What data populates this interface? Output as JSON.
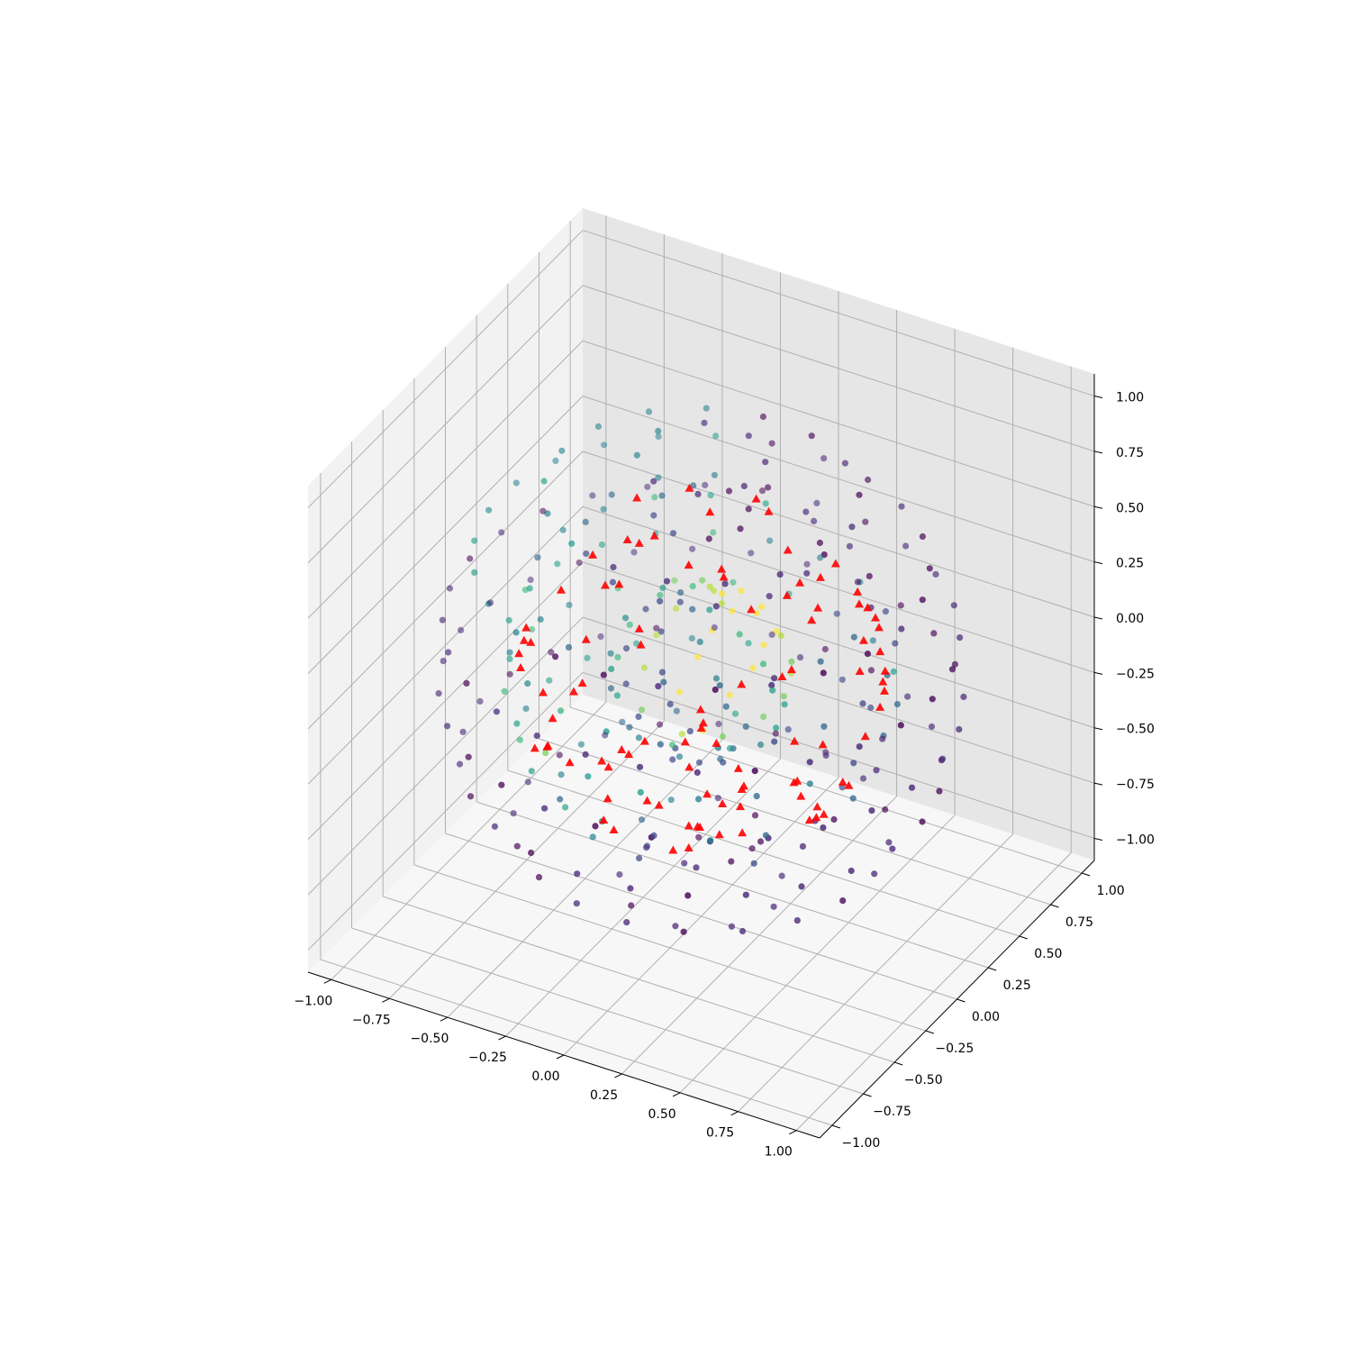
{
  "chart_data": {
    "type": "scatter",
    "projection": "3d",
    "title": "",
    "xlabel": "",
    "ylabel": "",
    "zlabel": "",
    "xlim": [
      -1.1,
      1.1
    ],
    "ylim": [
      -1.1,
      1.1
    ],
    "zlim": [
      -1.1,
      1.1
    ],
    "grid": true,
    "legend": "none",
    "x_ticks": [
      "−1.00",
      "−0.75",
      "−0.50",
      "−0.25",
      "0.00",
      "0.25",
      "0.50",
      "0.75",
      "1.00"
    ],
    "y_ticks": [
      "−1.00",
      "−0.75",
      "−0.50",
      "−0.25",
      "0.00",
      "0.25",
      "0.50",
      "0.75",
      "1.00"
    ],
    "z_ticks": [
      "−1.00",
      "−0.75",
      "−0.50",
      "−0.25",
      "0.00",
      "0.25",
      "0.50",
      "0.75",
      "1.00"
    ],
    "tick_values": [
      -1.0,
      -0.75,
      -0.5,
      -0.25,
      0.0,
      0.25,
      0.5,
      0.75,
      1.0
    ],
    "series": [
      {
        "marker": "circle",
        "colormap": "viridis",
        "description_of_shape": "points on concentric spheres (radii ~1.0, ~0.75, ~0.35) arranged on latitude rings, colored by value",
        "radii": [
          1.0,
          0.75,
          0.35
        ],
        "latitudes": [
          -0.95,
          -0.7,
          -0.4,
          -0.1,
          0.2,
          0.5,
          0.8,
          0.97
        ],
        "points_per_ring": 22
      },
      {
        "marker": "triangle",
        "color": "#ff0000",
        "description_of_shape": "subset of points on a sphere of radius ~0.7",
        "radius": 0.7,
        "count": 95
      }
    ]
  },
  "colors": {
    "pane_left": "#f2f2f2",
    "pane_right": "#e6e6e6",
    "pane_bottom": "#f7f7f7",
    "grid": "#b0b0b0",
    "axis_line": "#000000",
    "triangle": "#ff0000",
    "viridis": [
      "#440154",
      "#482878",
      "#3e4989",
      "#31688e",
      "#26828e",
      "#1f9e89",
      "#35b779",
      "#6ece58",
      "#b5de2b",
      "#fde725"
    ]
  }
}
